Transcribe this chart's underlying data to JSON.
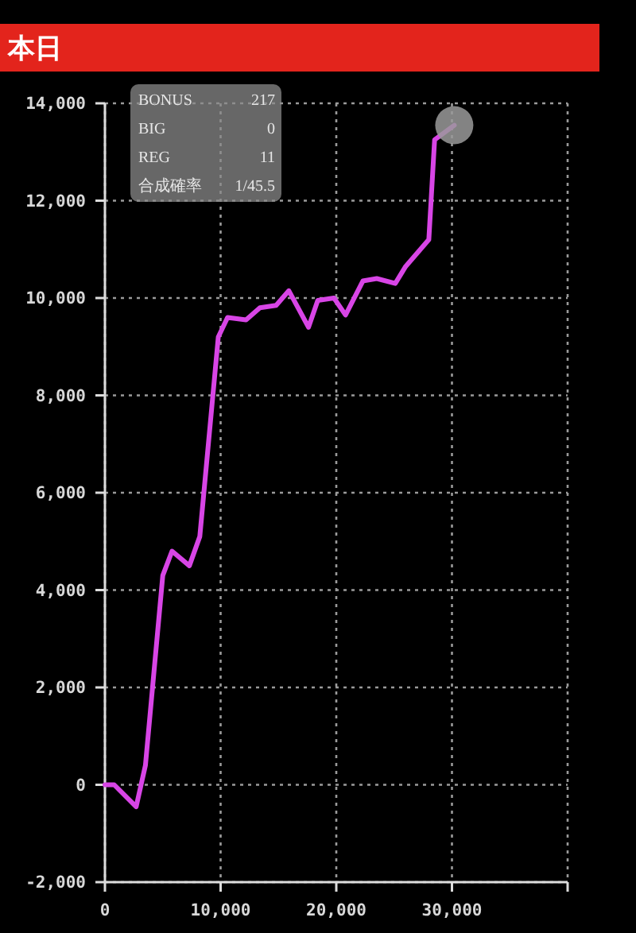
{
  "chart_data": {
    "type": "line",
    "title": "本日",
    "annotations": [
      "BONUS 217",
      "BIG 0",
      "REG 11",
      "合成確率 1/45.5"
    ],
    "series": [
      {
        "color": "#d845e6",
        "x": [
          0,
          800,
          2700,
          3500,
          5000,
          5800,
          7300,
          8200,
          9800,
          10600,
          12200,
          13400,
          14800,
          15900,
          17600,
          18400,
          19800,
          20800,
          22300,
          23500,
          25100,
          26000,
          28000,
          28500,
          30200
        ],
        "values": [
          0,
          0,
          -450,
          400,
          4300,
          4800,
          4500,
          5100,
          9200,
          9600,
          9550,
          9800,
          9850,
          10150,
          9400,
          9950,
          10000,
          9650,
          10350,
          10400,
          10300,
          10650,
          11200,
          13250,
          13550
        ]
      },
      {
        "type": "scatter",
        "color": "#9a9a9a",
        "marker": "circle",
        "x": [
          30200
        ],
        "values": [
          13550
        ]
      }
    ],
    "xlim": [
      0,
      40000
    ],
    "xticks": [
      0,
      {
        "value": 10000,
        "label": "10,000"
      },
      {
        "value": 20000,
        "label": "20,000"
      },
      {
        "value": 30000,
        "label": "30,000"
      },
      {
        "value": 40000,
        "label": null
      }
    ],
    "ylim": [
      -2000,
      14000
    ],
    "yticks": [
      {
        "value": -2000,
        "label": "-2,000"
      },
      0,
      {
        "value": 2000,
        "label": "2,000"
      },
      {
        "value": 4000,
        "label": "4,000"
      },
      {
        "value": 6000,
        "label": "6,000"
      },
      {
        "value": 8000,
        "label": "8,000"
      },
      {
        "value": 10000,
        "label": "10,000"
      },
      {
        "value": 12000,
        "label": "12,000"
      },
      {
        "value": 14000,
        "label": "14,000"
      }
    ],
    "grid": true,
    "line_style": "solid"
  }
}
